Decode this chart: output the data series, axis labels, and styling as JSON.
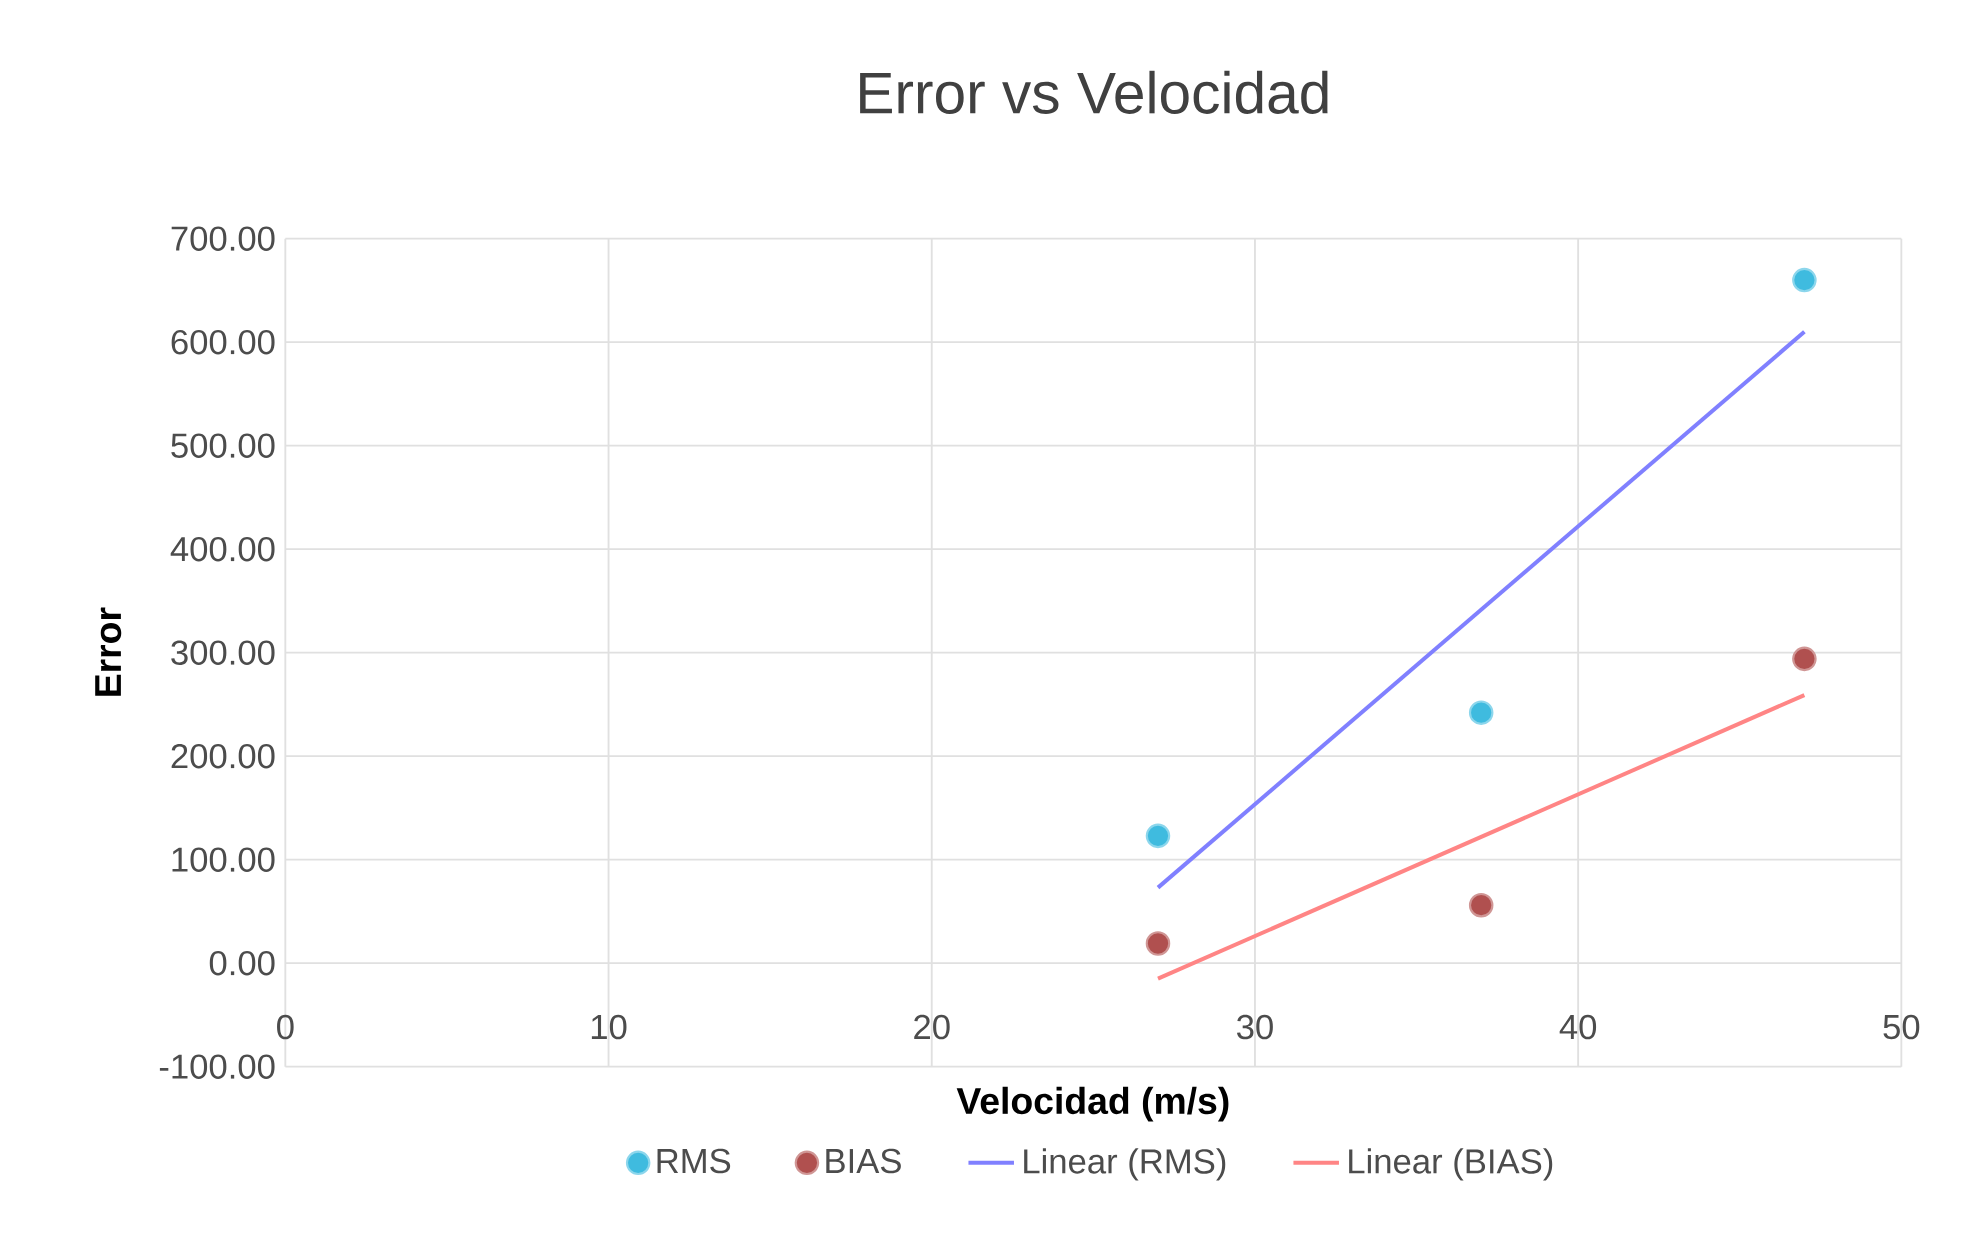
{
  "chart_data": {
    "type": "scatter",
    "title": "Error vs Velocidad",
    "xlabel": "Velocidad (m/s)",
    "ylabel": "Error",
    "xlim": [
      0,
      50
    ],
    "xticks": [
      0,
      10,
      20,
      30,
      40,
      50
    ],
    "ylim": [
      -100,
      700
    ],
    "yticks": [
      {
        "value": -100,
        "label": "-100.00"
      },
      {
        "value": 0,
        "label": "0.00"
      },
      {
        "value": 100,
        "label": "100.00"
      },
      {
        "value": 200,
        "label": "200.00"
      },
      {
        "value": 300,
        "label": "300.00"
      },
      {
        "value": 400,
        "label": "400.00"
      },
      {
        "value": 500,
        "label": "500.00"
      },
      {
        "value": 600,
        "label": "600.00"
      },
      {
        "value": 700,
        "label": "700.00"
      }
    ],
    "grid": true,
    "legend": "bottom",
    "series": [
      {
        "name": "RMS",
        "type": "scatter",
        "marker": "circle",
        "color": "#3fbbdf",
        "x": [
          27,
          37,
          47
        ],
        "values": [
          123,
          242,
          660
        ]
      },
      {
        "name": "BIAS",
        "type": "scatter",
        "marker": "circle",
        "color": "#b0504f",
        "x": [
          27,
          37,
          47
        ],
        "values": [
          19,
          56,
          294
        ]
      },
      {
        "name": "Linear (RMS)",
        "type": "line",
        "color": "#8080ff",
        "line_style": "solid",
        "marker": "none",
        "x": [
          27,
          47
        ],
        "values": [
          73,
          610
        ]
      },
      {
        "name": "Linear (BIAS)",
        "type": "line",
        "color": "#ff8585",
        "line_style": "solid",
        "marker": "none",
        "x": [
          27,
          47
        ],
        "values": [
          -15,
          259
        ]
      }
    ]
  }
}
